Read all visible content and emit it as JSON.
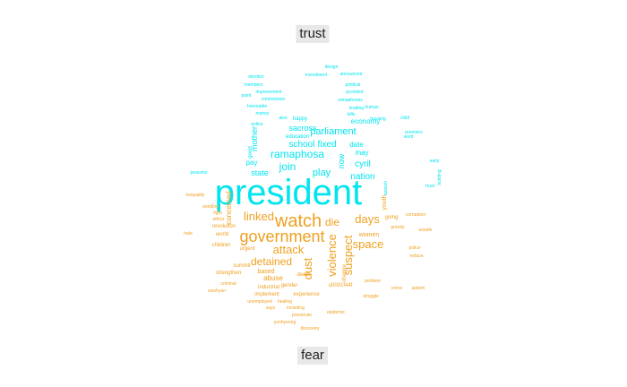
{
  "chart_data": {
    "type": "wordcloud",
    "groups": [
      {
        "name": "trust",
        "color": "#00e5ee"
      },
      {
        "name": "fear",
        "color": "#f0a020"
      }
    ],
    "words": [
      {
        "text": "president",
        "group": "trust",
        "weight": 40
      },
      {
        "text": "watch",
        "group": "fear",
        "weight": 20
      },
      {
        "text": "government",
        "group": "fear",
        "weight": 18
      },
      {
        "text": "linked",
        "group": "fear",
        "weight": 13
      },
      {
        "text": "die",
        "group": "fear",
        "weight": 12
      },
      {
        "text": "days",
        "group": "fear",
        "weight": 13
      },
      {
        "text": "attack",
        "group": "fear",
        "weight": 13
      },
      {
        "text": "detained",
        "group": "fear",
        "weight": 12
      },
      {
        "text": "dust",
        "group": "fear",
        "weight": 13
      },
      {
        "text": "violence",
        "group": "fear",
        "weight": 13
      },
      {
        "text": "suspect",
        "group": "fear",
        "weight": 13
      },
      {
        "text": "space",
        "group": "fear",
        "weight": 13
      },
      {
        "text": "ramaphosa",
        "group": "trust",
        "weight": 12
      },
      {
        "text": "join",
        "group": "trust",
        "weight": 12
      },
      {
        "text": "parliament",
        "group": "trust",
        "weight": 11
      },
      {
        "text": "school",
        "group": "trust",
        "weight": 10
      },
      {
        "text": "fixed",
        "group": "trust",
        "weight": 10
      },
      {
        "text": "cyril",
        "group": "trust",
        "weight": 10
      },
      {
        "text": "nation",
        "group": "trust",
        "weight": 10
      },
      {
        "text": "play",
        "group": "trust",
        "weight": 11
      },
      {
        "text": "sacross",
        "group": "trust",
        "weight": 9
      },
      {
        "text": "mother",
        "group": "trust",
        "weight": 9
      },
      {
        "text": "now",
        "group": "trust",
        "weight": 9
      },
      {
        "text": "state",
        "group": "trust",
        "weight": 9
      },
      {
        "text": "pay",
        "group": "trust",
        "weight": 8
      },
      {
        "text": "economy",
        "group": "trust",
        "weight": 8
      },
      {
        "text": "date",
        "group": "trust",
        "weight": 8
      },
      {
        "text": "may",
        "group": "trust",
        "weight": 8
      },
      {
        "text": "concerned",
        "group": "fear",
        "weight": 8
      },
      {
        "text": "women",
        "group": "fear",
        "weight": 7
      },
      {
        "text": "going",
        "group": "fear",
        "weight": 6
      },
      {
        "text": "urgent",
        "group": "fear",
        "weight": 6
      },
      {
        "text": "based",
        "group": "fear",
        "weight": 7
      },
      {
        "text": "abuse",
        "group": "fear",
        "weight": 8
      },
      {
        "text": "change",
        "group": "fear",
        "weight": 6
      },
      {
        "text": "death",
        "group": "fear",
        "weight": 6
      },
      {
        "text": "gender",
        "group": "fear",
        "weight": 6
      },
      {
        "text": "experience",
        "group": "fear",
        "weight": 6
      },
      {
        "text": "industrial",
        "group": "fear",
        "weight": 6
      },
      {
        "text": "implement",
        "group": "fear",
        "weight": 6
      },
      {
        "text": "u0001f44f",
        "group": "fear",
        "weight": 6
      },
      {
        "text": "children",
        "group": "fear",
        "weight": 6
      },
      {
        "text": "world",
        "group": "fear",
        "weight": 6
      },
      {
        "text": "revolution",
        "group": "fear",
        "weight": 6
      },
      {
        "text": "summit",
        "group": "fear",
        "weight": 6
      },
      {
        "text": "strengthen",
        "group": "fear",
        "weight": 6
      },
      {
        "text": "criminal",
        "group": "fear",
        "weight": 5
      },
      {
        "text": "woohyun",
        "group": "fear",
        "weight": 5
      },
      {
        "text": "unemployed",
        "group": "fear",
        "weight": 5
      },
      {
        "text": "healing",
        "group": "fear",
        "weight": 5
      },
      {
        "text": "including",
        "group": "fear",
        "weight": 5
      },
      {
        "text": "says",
        "group": "fear",
        "weight": 5
      },
      {
        "text": "prosecute",
        "group": "fear",
        "weight": 5
      },
      {
        "text": "epidemic",
        "group": "fear",
        "weight": 5
      },
      {
        "text": "yunhyeong",
        "group": "fear",
        "weight": 5
      },
      {
        "text": "discovery",
        "group": "fear",
        "weight": 5
      },
      {
        "text": "struggle",
        "group": "fear",
        "weight": 5
      },
      {
        "text": "priority",
        "group": "fear",
        "weight": 5
      },
      {
        "text": "problem",
        "group": "fear",
        "weight": 5
      },
      {
        "text": "crime",
        "group": "fear",
        "weight": 5
      },
      {
        "text": "askom",
        "group": "fear",
        "weight": 5
      },
      {
        "text": "police",
        "group": "fear",
        "weight": 5
      },
      {
        "text": "reduce",
        "group": "fear",
        "weight": 5
      },
      {
        "text": "unsafe",
        "group": "fear",
        "weight": 5
      },
      {
        "text": "corruption",
        "group": "fear",
        "weight": 5
      },
      {
        "text": "inequality",
        "group": "fear",
        "weight": 5
      },
      {
        "text": "peaceful",
        "group": "trust",
        "weight": 5
      },
      {
        "text": "election",
        "group": "trust",
        "weight": 5
      },
      {
        "text": "investment",
        "group": "trust",
        "weight": 5
      },
      {
        "text": "announced",
        "group": "trust",
        "weight": 5
      },
      {
        "text": "political",
        "group": "trust",
        "weight": 5
      },
      {
        "text": "improvement",
        "group": "trust",
        "weight": 5
      },
      {
        "text": "commission",
        "group": "trust",
        "weight": 5
      },
      {
        "text": "honorable",
        "group": "trust",
        "weight": 5
      },
      {
        "text": "money",
        "group": "trust",
        "weight": 5
      },
      {
        "text": "leading",
        "group": "trust",
        "weight": 5
      },
      {
        "text": "provided",
        "group": "trust",
        "weight": 5
      },
      {
        "text": "ramaphoses",
        "group": "trust",
        "weight": 5
      },
      {
        "text": "education",
        "group": "trust",
        "weight": 6
      },
      {
        "text": "happy",
        "group": "trust",
        "weight": 6
      },
      {
        "text": "also",
        "group": "trust",
        "weight": 5
      },
      {
        "text": "housing",
        "group": "trust",
        "weight": 5
      },
      {
        "text": "human",
        "group": "trust",
        "weight": 5
      },
      {
        "text": "premiers",
        "group": "trust",
        "weight": 5
      },
      {
        "text": "early",
        "group": "trust",
        "weight": 5
      },
      {
        "text": "trust",
        "group": "trust",
        "weight": 5
      },
      {
        "text": "building",
        "group": "trust",
        "weight": 5
      },
      {
        "text": "members",
        "group": "trust",
        "weight": 5
      },
      {
        "text": "design",
        "group": "trust",
        "weight": 5
      },
      {
        "text": "point",
        "group": "trust",
        "weight": 5
      },
      {
        "text": "good",
        "group": "trust",
        "weight": 6
      },
      {
        "text": "online",
        "group": "trust",
        "weight": 5
      },
      {
        "text": "bills",
        "group": "trust",
        "weight": 5
      },
      {
        "text": "child",
        "group": "trust",
        "weight": 5
      },
      {
        "text": "word",
        "group": "trust",
        "weight": 5
      },
      {
        "text": "speech",
        "group": "trust",
        "weight": 5
      },
      {
        "text": "youth",
        "group": "fear",
        "weight": 7
      },
      {
        "text": "fight",
        "group": "fear",
        "weight": 5
      },
      {
        "text": "ethics",
        "group": "fear",
        "weight": 5
      },
      {
        "text": "pending",
        "group": "fear",
        "weight": 5
      },
      {
        "text": "hate",
        "group": "fear",
        "weight": 5
      }
    ]
  }
}
